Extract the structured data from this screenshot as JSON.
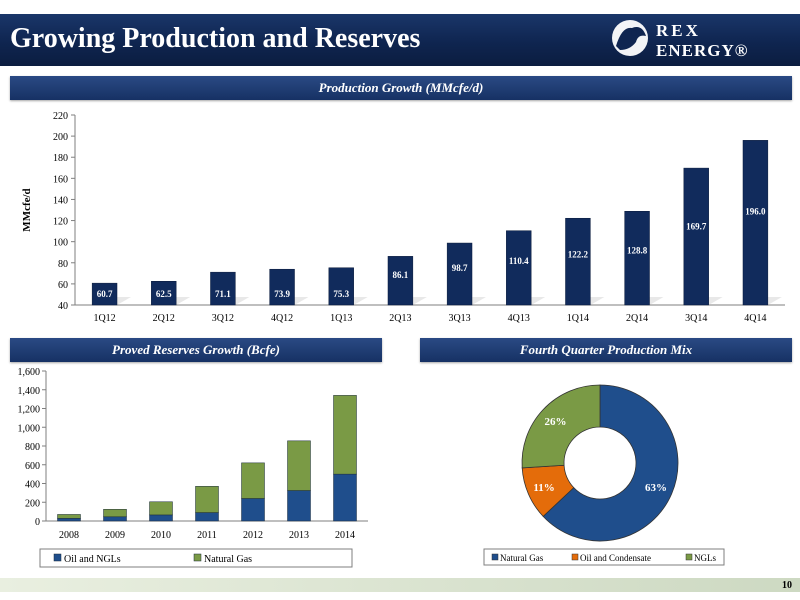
{
  "header": {
    "title": "Growing Production and Reserves"
  },
  "logo": {
    "line1": "REX",
    "line2": "ENERGY®"
  },
  "sections": {
    "production": "Production Growth (MMcfe/d)",
    "reserves": "Proved Reserves Growth (Bcfe)",
    "mix": "Fourth Quarter Production Mix"
  },
  "page_number": "10",
  "colors": {
    "navy": "#112b5c",
    "blue": "#1f4e8c",
    "green": "#7a9a45",
    "orange": "#e46c0a"
  },
  "chart_data": [
    {
      "type": "bar",
      "categories": [
        "1Q12",
        "2Q12",
        "3Q12",
        "4Q12",
        "1Q13",
        "2Q13",
        "3Q13",
        "4Q13",
        "1Q14",
        "2Q14",
        "3Q14",
        "4Q14"
      ],
      "values": [
        60.7,
        62.5,
        71.1,
        73.9,
        75.3,
        86.1,
        98.7,
        110.4,
        122.2,
        128.8,
        169.7,
        196.0
      ],
      "value_labels": [
        "60.7",
        "62.5",
        "71.1",
        "73.9",
        "75.3",
        "86.1",
        "98.7",
        "110.4",
        "122.2",
        "128.8",
        "169.7",
        "196.0"
      ],
      "ylabel": "MMcfe/d",
      "ylim": [
        40,
        220
      ],
      "yticks": [
        40,
        60,
        80,
        100,
        120,
        140,
        160,
        180,
        200,
        220
      ],
      "ytick_labels": [
        "40",
        "60",
        "80",
        "100",
        "120",
        "140",
        "160",
        "180",
        "200",
        "220"
      ],
      "color": "#112b5c"
    },
    {
      "type": "bar",
      "stacked": true,
      "categories": [
        "2008",
        "2009",
        "2010",
        "2011",
        "2012",
        "2013",
        "2014"
      ],
      "series": [
        {
          "name": "Oil and NGLs",
          "values": [
            28,
            45,
            65,
            90,
            240,
            325,
            500
          ],
          "color": "#1f4e8c"
        },
        {
          "name": "Natural Gas",
          "values": [
            42,
            80,
            140,
            280,
            380,
            530,
            840
          ],
          "color": "#7a9a45"
        }
      ],
      "ylim": [
        0,
        1600
      ],
      "yticks": [
        0,
        200,
        400,
        600,
        800,
        1000,
        1200,
        1400,
        1600
      ],
      "ytick_labels": [
        "0",
        "200",
        "400",
        "600",
        "800",
        "1,000",
        "1,200",
        "1,400",
        "1,600"
      ],
      "legend": "bottom"
    },
    {
      "type": "pie",
      "donut": true,
      "slices": [
        {
          "name": "Natural Gas",
          "value": 63,
          "label": "63%",
          "color": "#1f4e8c"
        },
        {
          "name": "Oil and Condensate",
          "value": 11,
          "label": "11%",
          "color": "#e46c0a"
        },
        {
          "name": "NGLs",
          "value": 26,
          "label": "26%",
          "color": "#7a9a45"
        }
      ],
      "legend": "bottom"
    }
  ]
}
